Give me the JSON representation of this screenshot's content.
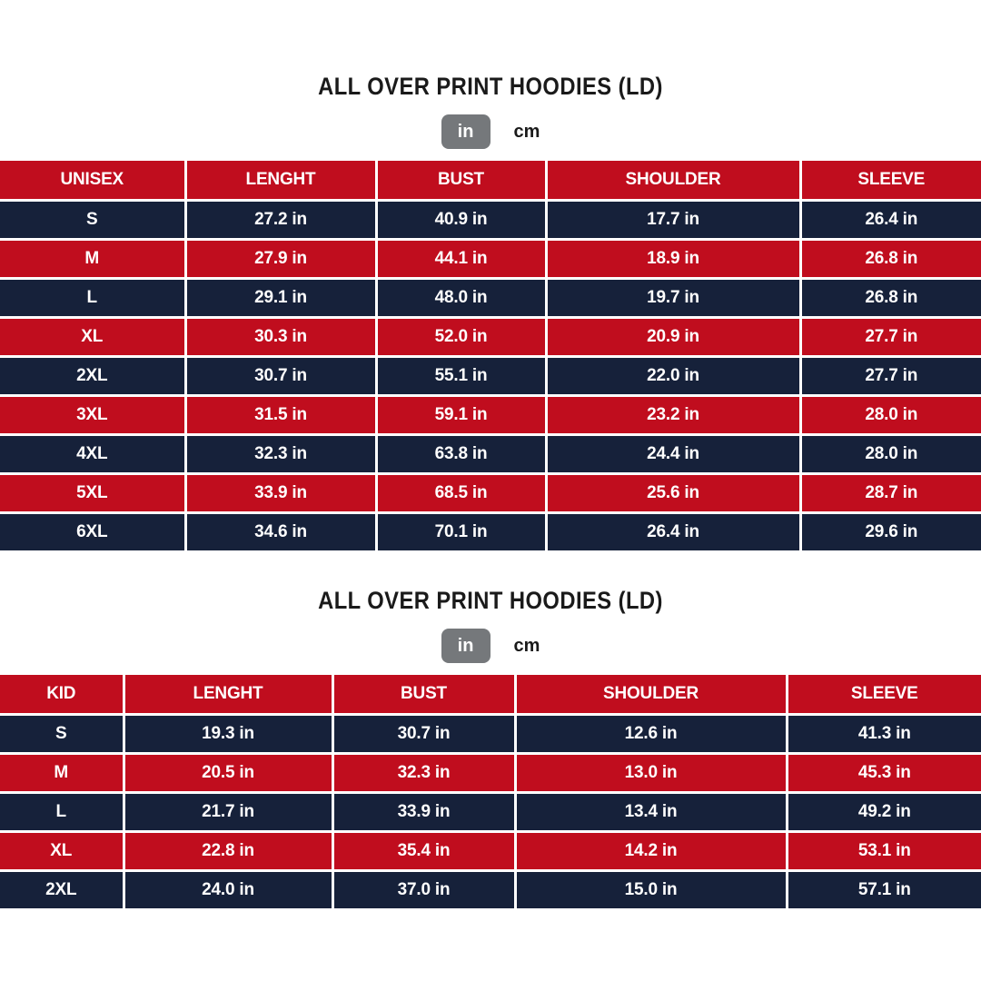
{
  "colors": {
    "header_red": "#c00d1e",
    "row_navy": "#16213a",
    "toggle_gray": "#75787b",
    "cell_text": "#ffffff",
    "title_text": "#1a1a1a"
  },
  "tables": [
    {
      "title": "ALL OVER PRINT HOODIES (LD)",
      "unit_selected": "in",
      "unit_options": [
        "in",
        "cm"
      ],
      "headers": [
        "UNISEX",
        "LENGHT",
        "BUST",
        "SHOULDER",
        "SLEEVE"
      ],
      "rows": [
        {
          "size": "S",
          "values": [
            "27.2 in",
            "40.9 in",
            "17.7 in",
            "26.4 in"
          ]
        },
        {
          "size": "M",
          "values": [
            "27.9 in",
            "44.1 in",
            "18.9 in",
            "26.8 in"
          ]
        },
        {
          "size": "L",
          "values": [
            "29.1 in",
            "48.0 in",
            "19.7 in",
            "26.8 in"
          ]
        },
        {
          "size": "XL",
          "values": [
            "30.3 in",
            "52.0 in",
            "20.9 in",
            "27.7 in"
          ]
        },
        {
          "size": "2XL",
          "values": [
            "30.7 in",
            "55.1 in",
            "22.0 in",
            "27.7 in"
          ]
        },
        {
          "size": "3XL",
          "values": [
            "31.5 in",
            "59.1 in",
            "23.2 in",
            "28.0 in"
          ]
        },
        {
          "size": "4XL",
          "values": [
            "32.3 in",
            "63.8 in",
            "24.4 in",
            "28.0 in"
          ]
        },
        {
          "size": "5XL",
          "values": [
            "33.9 in",
            "68.5 in",
            "25.6 in",
            "28.7 in"
          ]
        },
        {
          "size": "6XL",
          "values": [
            "34.6 in",
            "70.1 in",
            "26.4 in",
            "29.6 in"
          ]
        }
      ]
    },
    {
      "title": "ALL OVER PRINT HOODIES (LD)",
      "unit_selected": "in",
      "unit_options": [
        "in",
        "cm"
      ],
      "headers": [
        "KID",
        "LENGHT",
        "BUST",
        "SHOULDER",
        "SLEEVE"
      ],
      "rows": [
        {
          "size": "S",
          "values": [
            "19.3 in",
            "30.7 in",
            "12.6 in",
            "41.3 in"
          ]
        },
        {
          "size": "M",
          "values": [
            "20.5 in",
            "32.3 in",
            "13.0 in",
            "45.3 in"
          ]
        },
        {
          "size": "L",
          "values": [
            "21.7 in",
            "33.9 in",
            "13.4 in",
            "49.2 in"
          ]
        },
        {
          "size": "XL",
          "values": [
            "22.8 in",
            "35.4 in",
            "14.2 in",
            "53.1 in"
          ]
        },
        {
          "size": "2XL",
          "values": [
            "24.0 in",
            "37.0 in",
            "15.0 in",
            "57.1 in"
          ]
        }
      ]
    }
  ]
}
